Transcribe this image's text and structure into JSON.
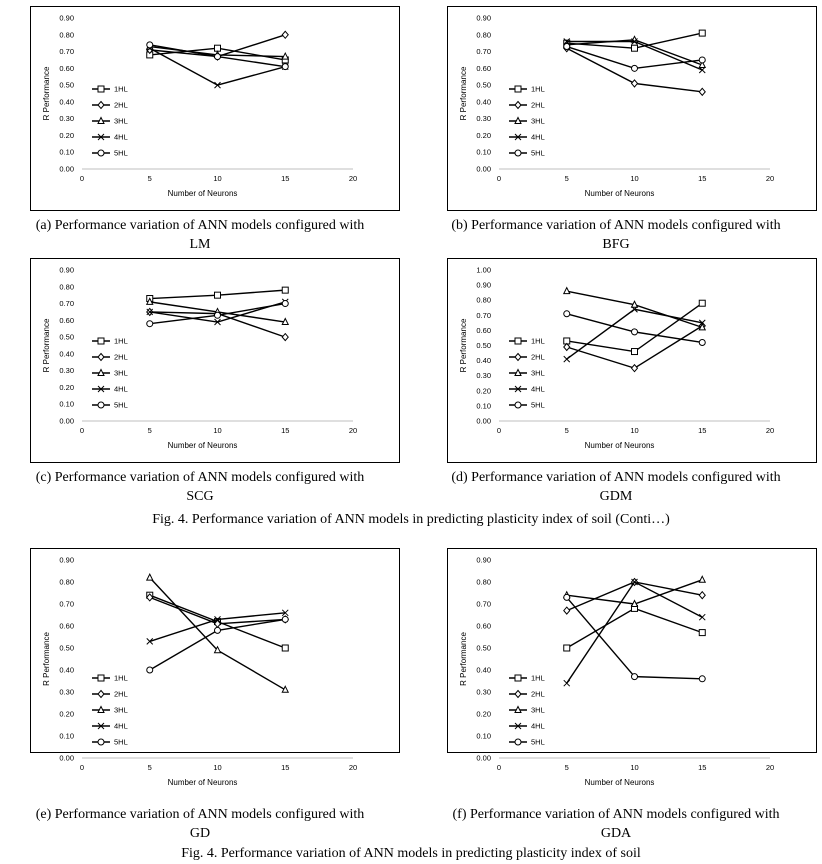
{
  "chart_data": [
    {
      "type": "line",
      "xlabel": "Number of Neurons",
      "ylabel": "R Performance",
      "xlim": [
        0,
        20
      ],
      "ylim": [
        0,
        0.9
      ],
      "x_ticks": [
        "0",
        "5",
        "10",
        "15",
        "20"
      ],
      "y_ticks": [
        "0.00",
        "0.10",
        "0.20",
        "0.30",
        "0.40",
        "0.50",
        "0.60",
        "0.70",
        "0.80",
        "0.90"
      ],
      "x": [
        5,
        10,
        15
      ],
      "legend": "left",
      "series": [
        {
          "name": "1HL",
          "marker": "square",
          "values": [
            0.68,
            0.72,
            0.65
          ]
        },
        {
          "name": "2HL",
          "marker": "diamond",
          "values": [
            0.71,
            0.67,
            0.8
          ]
        },
        {
          "name": "3HL",
          "marker": "triangle",
          "values": [
            0.73,
            0.68,
            0.67
          ]
        },
        {
          "name": "4HL",
          "marker": "x",
          "values": [
            0.72,
            0.5,
            0.61
          ]
        },
        {
          "name": "5HL",
          "marker": "circle",
          "values": [
            0.74,
            0.67,
            0.61
          ]
        }
      ]
    },
    {
      "type": "line",
      "xlabel": "Number of Neurons",
      "ylabel": "R Performance",
      "xlim": [
        0,
        20
      ],
      "ylim": [
        0,
        0.9
      ],
      "x_ticks": [
        "0",
        "5",
        "10",
        "15",
        "20"
      ],
      "y_ticks": [
        "0.00",
        "0.10",
        "0.20",
        "0.30",
        "0.40",
        "0.50",
        "0.60",
        "0.70",
        "0.80",
        "0.90"
      ],
      "x": [
        5,
        10,
        15
      ],
      "legend": "left",
      "series": [
        {
          "name": "1HL",
          "marker": "square",
          "values": [
            0.75,
            0.72,
            0.81
          ]
        },
        {
          "name": "2HL",
          "marker": "diamond",
          "values": [
            0.72,
            0.51,
            0.46
          ]
        },
        {
          "name": "3HL",
          "marker": "triangle",
          "values": [
            0.74,
            0.77,
            0.62
          ]
        },
        {
          "name": "4HL",
          "marker": "x",
          "values": [
            0.76,
            0.76,
            0.59
          ]
        },
        {
          "name": "5HL",
          "marker": "circle",
          "values": [
            0.73,
            0.6,
            0.65
          ]
        }
      ]
    },
    {
      "type": "line",
      "xlabel": "Number of Neurons",
      "ylabel": "R Performance",
      "xlim": [
        0,
        20
      ],
      "ylim": [
        0,
        0.9
      ],
      "x_ticks": [
        "0",
        "5",
        "10",
        "15",
        "20"
      ],
      "y_ticks": [
        "0.00",
        "0.10",
        "0.20",
        "0.30",
        "0.40",
        "0.50",
        "0.60",
        "0.70",
        "0.80",
        "0.90"
      ],
      "x": [
        5,
        10,
        15
      ],
      "legend": "left",
      "series": [
        {
          "name": "1HL",
          "marker": "square",
          "values": [
            0.73,
            0.75,
            0.78
          ]
        },
        {
          "name": "2HL",
          "marker": "diamond",
          "values": [
            0.65,
            0.64,
            0.5
          ]
        },
        {
          "name": "3HL",
          "marker": "triangle",
          "values": [
            0.71,
            0.65,
            0.59
          ]
        },
        {
          "name": "4HL",
          "marker": "x",
          "values": [
            0.65,
            0.59,
            0.71
          ]
        },
        {
          "name": "5HL",
          "marker": "circle",
          "values": [
            0.58,
            0.63,
            0.7
          ]
        }
      ]
    },
    {
      "type": "line",
      "xlabel": "Number of Neurons",
      "ylabel": "R Performance",
      "xlim": [
        0,
        20
      ],
      "ylim": [
        0,
        1.0
      ],
      "x_ticks": [
        "0",
        "5",
        "10",
        "15",
        "20"
      ],
      "y_ticks": [
        "0.00",
        "0.10",
        "0.20",
        "0.30",
        "0.40",
        "0.50",
        "0.60",
        "0.70",
        "0.80",
        "0.90",
        "1.00"
      ],
      "x": [
        5,
        10,
        15
      ],
      "legend": "left",
      "series": [
        {
          "name": "1HL",
          "marker": "square",
          "values": [
            0.53,
            0.46,
            0.78
          ]
        },
        {
          "name": "2HL",
          "marker": "diamond",
          "values": [
            0.49,
            0.35,
            0.63
          ]
        },
        {
          "name": "3HL",
          "marker": "triangle",
          "values": [
            0.86,
            0.77,
            0.62
          ]
        },
        {
          "name": "4HL",
          "marker": "x",
          "values": [
            0.41,
            0.74,
            0.65
          ]
        },
        {
          "name": "5HL",
          "marker": "circle",
          "values": [
            0.71,
            0.59,
            0.52
          ]
        }
      ]
    },
    {
      "type": "line",
      "xlabel": "Number of Neurons",
      "ylabel": "R Performance",
      "xlim": [
        0,
        20
      ],
      "ylim": [
        0,
        0.9
      ],
      "x_ticks": [
        "0",
        "5",
        "10",
        "15",
        "20"
      ],
      "y_ticks": [
        "0.00",
        "0.10",
        "0.20",
        "0.30",
        "0.40",
        "0.50",
        "0.60",
        "0.70",
        "0.80",
        "0.90"
      ],
      "x": [
        5,
        10,
        15
      ],
      "legend": "left",
      "series": [
        {
          "name": "1HL",
          "marker": "square",
          "values": [
            0.74,
            0.62,
            0.5
          ]
        },
        {
          "name": "2HL",
          "marker": "diamond",
          "values": [
            0.73,
            0.61,
            0.63
          ]
        },
        {
          "name": "3HL",
          "marker": "triangle",
          "values": [
            0.82,
            0.49,
            0.31
          ]
        },
        {
          "name": "4HL",
          "marker": "x",
          "values": [
            0.53,
            0.63,
            0.66
          ]
        },
        {
          "name": "5HL",
          "marker": "circle",
          "values": [
            0.4,
            0.58,
            0.63
          ]
        }
      ]
    },
    {
      "type": "line",
      "xlabel": "Number of Neurons",
      "ylabel": "R Performance",
      "xlim": [
        0,
        20
      ],
      "ylim": [
        0,
        0.9
      ],
      "x_ticks": [
        "0",
        "5",
        "10",
        "15",
        "20"
      ],
      "y_ticks": [
        "0.00",
        "0.10",
        "0.20",
        "0.30",
        "0.40",
        "0.50",
        "0.60",
        "0.70",
        "0.80",
        "0.90"
      ],
      "x": [
        5,
        10,
        15
      ],
      "legend": "left",
      "series": [
        {
          "name": "1HL",
          "marker": "square",
          "values": [
            0.5,
            0.68,
            0.57
          ]
        },
        {
          "name": "2HL",
          "marker": "diamond",
          "values": [
            0.67,
            0.8,
            0.74
          ]
        },
        {
          "name": "3HL",
          "marker": "triangle",
          "values": [
            0.74,
            0.7,
            0.81
          ]
        },
        {
          "name": "4HL",
          "marker": "x",
          "values": [
            0.34,
            0.8,
            0.64
          ]
        },
        {
          "name": "5HL",
          "marker": "circle",
          "values": [
            0.73,
            0.37,
            0.36
          ]
        }
      ]
    }
  ],
  "captions": {
    "a_line1": "(a) Performance variation of ANN models configured with",
    "a_line2": "LM",
    "b_line1": "(b) Performance variation of ANN models configured with",
    "b_line2": "BFG",
    "c_line1": "(c) Performance variation of ANN models configured with",
    "c_line2": "SCG",
    "d_line1": "(d) Performance variation of ANN models configured with",
    "d_line2": "GDM",
    "e_line1": "(e) Performance variation of ANN models configured with",
    "e_line2": "GD",
    "f_line1": "(f) Performance variation of ANN models configured with",
    "f_line2": "GDA"
  },
  "figure_captions": {
    "first": "Fig. 4. Performance variation of ANN models in predicting plasticity index of soil (Conti…)",
    "second": "Fig. 4. Performance variation of ANN models in predicting plasticity index of soil"
  }
}
